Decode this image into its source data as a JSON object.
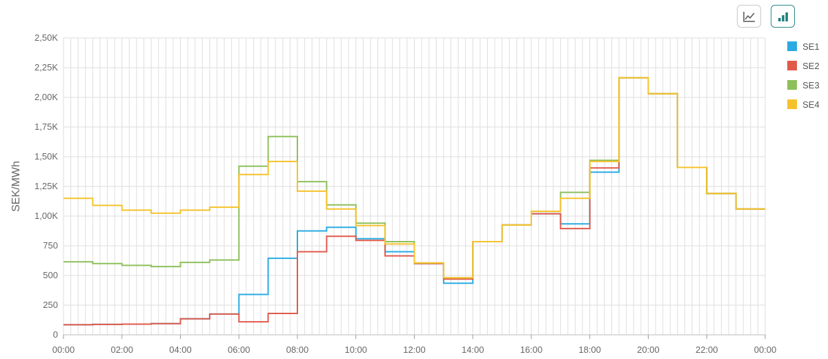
{
  "toolbar": {
    "buttons": [
      {
        "name": "line-chart-button",
        "icon": "line-chart-icon",
        "active": false
      },
      {
        "name": "bar-chart-button",
        "icon": "bar-chart-icon",
        "active": true
      }
    ]
  },
  "chart_data": {
    "type": "line",
    "step": true,
    "ylabel": "SEK/MWh",
    "xlabel": "",
    "title": "",
    "ylim": [
      0,
      2500
    ],
    "yticks": [
      0,
      250,
      500,
      750,
      1000,
      1250,
      1500,
      1750,
      2000,
      2250,
      2500
    ],
    "ytick_labels": [
      "0",
      "250",
      "500",
      "750",
      "1,00K",
      "1,25K",
      "1,50K",
      "1,75K",
      "2,00K",
      "2,25K",
      "2,50K"
    ],
    "xlim": [
      0,
      24
    ],
    "xticks": [
      0,
      2,
      4,
      6,
      8,
      10,
      12,
      14,
      16,
      18,
      20,
      22,
      24
    ],
    "xtick_labels": [
      "00:00",
      "02:00",
      "04:00",
      "06:00",
      "08:00",
      "10:00",
      "12:00",
      "14:00",
      "16:00",
      "18:00",
      "20:00",
      "22:00",
      "00:00"
    ],
    "grid": true,
    "legend": "right",
    "series": [
      {
        "name": "SE1",
        "color": "#29abe2",
        "values": [
          85,
          88,
          90,
          95,
          135,
          175,
          340,
          645,
          875,
          905,
          810,
          700,
          600,
          435,
          785,
          925,
          1020,
          935,
          1370,
          2165,
          2030,
          1410,
          1190,
          1060
        ]
      },
      {
        "name": "SE2",
        "color": "#e05a4a",
        "values": [
          85,
          88,
          90,
          95,
          135,
          175,
          110,
          180,
          700,
          830,
          795,
          665,
          600,
          470,
          785,
          925,
          1020,
          895,
          1405,
          2165,
          2030,
          1410,
          1190,
          1060
        ]
      },
      {
        "name": "SE3",
        "color": "#8dc05a",
        "values": [
          615,
          600,
          585,
          575,
          610,
          630,
          1420,
          1670,
          1290,
          1095,
          940,
          785,
          605,
          480,
          785,
          925,
          1040,
          1200,
          1470,
          2165,
          2030,
          1410,
          1190,
          1060
        ]
      },
      {
        "name": "SE4",
        "color": "#f5c22b",
        "values": [
          1150,
          1090,
          1050,
          1025,
          1050,
          1075,
          1350,
          1460,
          1210,
          1060,
          920,
          765,
          605,
          480,
          785,
          925,
          1040,
          1150,
          1460,
          2165,
          2030,
          1410,
          1190,
          1060
        ]
      }
    ]
  }
}
